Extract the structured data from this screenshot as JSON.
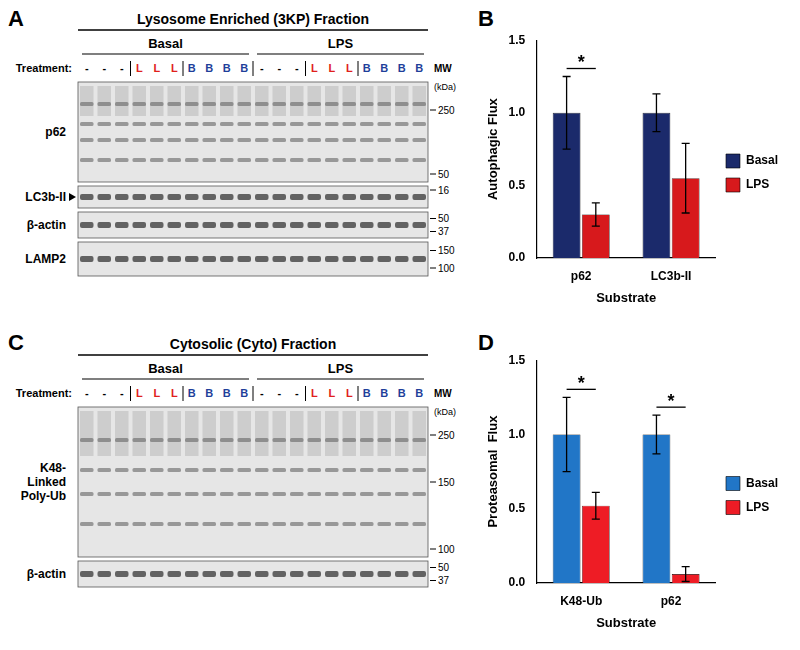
{
  "panels": [
    "A",
    "B",
    "C",
    "D"
  ],
  "blots": [
    {
      "title": "Lysosome Enriched (3KP) Fraction",
      "groups": [
        "Basal",
        "LPS"
      ],
      "treatment_label": "Treatment:",
      "lanes": [
        "-",
        "-",
        "-",
        "L",
        "L",
        "L",
        "B",
        "B",
        "B",
        "B",
        "-",
        "-",
        "-",
        "L",
        "L",
        "L",
        "B",
        "B",
        "B",
        "B"
      ],
      "treatment_colors": {
        "L": "#e0201b",
        "B": "#1f3f9a"
      },
      "mw_label": "MW",
      "mw_unit": "(kDa)",
      "rows": [
        {
          "name": [
            "p62"
          ],
          "markers": [
            250,
            50
          ]
        },
        {
          "name": [
            "LC3b-II"
          ],
          "markers": [
            16
          ]
        },
        {
          "name": [
            "β-actin"
          ],
          "markers": [
            50,
            37
          ]
        },
        {
          "name": [
            "LAMP2"
          ],
          "markers": [
            150,
            100
          ]
        }
      ]
    },
    {
      "title": "Cytosolic (Cyto) Fraction",
      "groups": [
        "Basal",
        "LPS"
      ],
      "treatment_label": "Treatment:",
      "lanes": [
        "-",
        "-",
        "-",
        "L",
        "L",
        "L",
        "B",
        "B",
        "B",
        "B",
        "-",
        "-",
        "-",
        "L",
        "L",
        "L",
        "B",
        "B",
        "B",
        "B"
      ],
      "treatment_colors": {
        "L": "#e0201b",
        "B": "#1f3f9a"
      },
      "mw_label": "MW",
      "mw_unit": "(kDa)",
      "rows": [
        {
          "name": [
            "K48-",
            "Linked",
            "Poly-Ub"
          ],
          "markers": [
            250,
            150,
            100
          ]
        },
        {
          "name": [
            "β-actin"
          ],
          "markers": [
            50,
            37
          ]
        }
      ]
    }
  ],
  "chart_data": [
    {
      "type": "bar",
      "ylabel": "Autophagic Flux",
      "xlabel": "Substrate",
      "categories": [
        "p62",
        "LC3b-II"
      ],
      "series": [
        {
          "name": "Basal",
          "color": "#1b2a6b",
          "values": [
            1.0,
            1.0
          ],
          "errors": [
            0.25,
            0.13
          ]
        },
        {
          "name": "LPS",
          "color": "#d7191c",
          "values": [
            0.3,
            0.55
          ],
          "errors": [
            0.08,
            0.24
          ]
        }
      ],
      "ylim": [
        0,
        1.5
      ],
      "yticks": [
        {
          "value": 0,
          "label": "0.0"
        },
        0.5,
        {
          "value": 1,
          "label": "1.0"
        },
        1.5
      ],
      "grid": false,
      "legend": "right",
      "annotations": [
        {
          "text": "*",
          "category": "p62"
        }
      ]
    },
    {
      "type": "bar",
      "ylabel": "Proteasomal  Flux",
      "xlabel": "Substrate",
      "categories": [
        "K48-Ub",
        "p62"
      ],
      "series": [
        {
          "name": "Basal",
          "color": "#2176c7",
          "values": [
            1.0,
            1.0
          ],
          "errors": [
            0.25,
            0.13
          ]
        },
        {
          "name": "LPS",
          "color": "#ee1c25",
          "values": [
            0.52,
            0.06
          ],
          "errors": [
            0.09,
            0.05
          ]
        }
      ],
      "ylim": [
        0,
        1.5
      ],
      "yticks": [
        {
          "value": 0,
          "label": "0.0"
        },
        0.5,
        {
          "value": 1,
          "label": "1.0"
        },
        1.5
      ],
      "grid": false,
      "legend": "right",
      "annotations": [
        {
          "text": "*",
          "category": "K48-Ub"
        },
        {
          "text": "*",
          "category": "p62"
        }
      ]
    }
  ]
}
